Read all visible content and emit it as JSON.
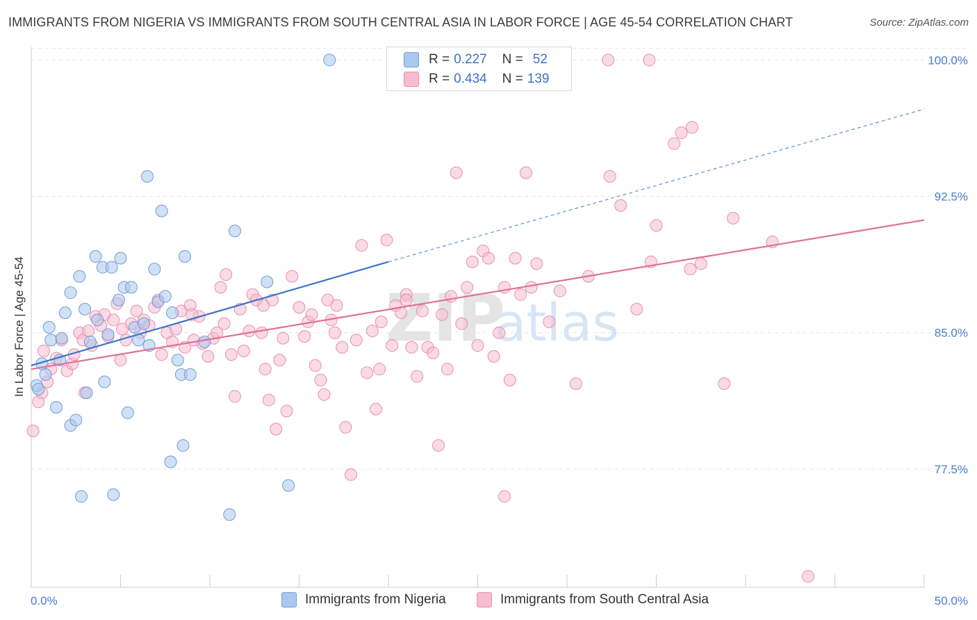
{
  "title": "IMMIGRANTS FROM NIGERIA VS IMMIGRANTS FROM SOUTH CENTRAL ASIA IN LABOR FORCE | AGE 45-54 CORRELATION CHART",
  "source": "Source: ZipAtlas.com",
  "watermark": "ZIPatlas",
  "colors": {
    "blue_fill": "#aac8ee",
    "blue_stroke": "#6f9bd8",
    "blue_line": "#3a75c9",
    "pink_fill": "#f6bcd0",
    "pink_stroke": "#e88fae",
    "pink_line": "#e07096",
    "tick_label": "#4a7cc9",
    "grid": "#e4e4e4"
  },
  "legend": {
    "rows": [
      {
        "r_label": "R =",
        "r_value": "0.227",
        "n_label": "N =",
        "n_value": "52"
      },
      {
        "r_label": "R =",
        "r_value": "0.434",
        "n_label": "N =",
        "n_value": "139"
      }
    ]
  },
  "chart_data": {
    "type": "scatter",
    "title": "IMMIGRANTS FROM NIGERIA VS IMMIGRANTS FROM SOUTH CENTRAL ASIA IN LABOR FORCE | AGE 45-54 CORRELATION CHART",
    "xlabel": "",
    "ylabel": "In Labor Force | Age 45-54",
    "xlim": [
      0,
      50
    ],
    "ylim": [
      71,
      100.7
    ],
    "x_tick_labels": [
      "0.0%",
      "50.0%"
    ],
    "y_ticks": [
      77.5,
      85.0,
      92.5,
      100.0
    ],
    "y_tick_labels": [
      "77.5%",
      "85.0%",
      "92.5%",
      "100.0%"
    ],
    "grid": true,
    "legend_placement": "top-center",
    "series": [
      {
        "name": "Immigrants from Nigeria",
        "color": "#aac8ee",
        "trend": {
          "x0": 0,
          "y0": 83.2,
          "x1": 20,
          "y1": 88.9,
          "extend_to_x": 50,
          "extend_to_y": 97.3
        },
        "points": [
          [
            0.3,
            82.1
          ],
          [
            0.4,
            81.9
          ],
          [
            0.6,
            83.3
          ],
          [
            0.8,
            82.7
          ],
          [
            1.0,
            85.3
          ],
          [
            1.1,
            84.6
          ],
          [
            1.4,
            80.9
          ],
          [
            1.6,
            83.5
          ],
          [
            1.7,
            84.7
          ],
          [
            1.9,
            86.1
          ],
          [
            2.2,
            87.2
          ],
          [
            2.2,
            79.9
          ],
          [
            2.5,
            80.2
          ],
          [
            2.7,
            88.1
          ],
          [
            2.8,
            76.0
          ],
          [
            3.0,
            86.3
          ],
          [
            3.1,
            81.7
          ],
          [
            3.3,
            84.5
          ],
          [
            3.6,
            89.2
          ],
          [
            3.7,
            85.7
          ],
          [
            4.0,
            88.6
          ],
          [
            4.1,
            82.3
          ],
          [
            4.3,
            84.9
          ],
          [
            4.5,
            88.6
          ],
          [
            4.6,
            76.1
          ],
          [
            4.9,
            86.8
          ],
          [
            5.0,
            89.1
          ],
          [
            5.2,
            87.5
          ],
          [
            5.4,
            80.6
          ],
          [
            5.6,
            87.5
          ],
          [
            5.8,
            85.3
          ],
          [
            6.0,
            84.6
          ],
          [
            6.3,
            85.5
          ],
          [
            6.5,
            93.6
          ],
          [
            6.6,
            84.3
          ],
          [
            6.9,
            88.5
          ],
          [
            7.1,
            86.7
          ],
          [
            7.3,
            91.7
          ],
          [
            7.5,
            87.0
          ],
          [
            7.8,
            77.9
          ],
          [
            7.9,
            86.1
          ],
          [
            8.2,
            83.5
          ],
          [
            8.4,
            82.7
          ],
          [
            8.5,
            78.8
          ],
          [
            8.6,
            89.2
          ],
          [
            8.9,
            82.7
          ],
          [
            9.7,
            84.5
          ],
          [
            11.1,
            75.0
          ],
          [
            11.4,
            90.6
          ],
          [
            13.2,
            87.8
          ],
          [
            14.4,
            76.6
          ],
          [
            16.7,
            100.0
          ]
        ]
      },
      {
        "name": "Immigrants from South Central Asia",
        "color": "#f6bcd0",
        "trend": {
          "x0": 0,
          "y0": 83.0,
          "x1": 50,
          "y1": 91.2
        },
        "points": [
          [
            0.1,
            79.6
          ],
          [
            0.4,
            81.2
          ],
          [
            0.6,
            81.7
          ],
          [
            0.7,
            84.0
          ],
          [
            0.9,
            82.3
          ],
          [
            1.1,
            83.0
          ],
          [
            1.4,
            83.6
          ],
          [
            1.7,
            84.6
          ],
          [
            2.0,
            82.9
          ],
          [
            2.3,
            83.3
          ],
          [
            2.4,
            83.8
          ],
          [
            2.7,
            85.0
          ],
          [
            2.9,
            84.6
          ],
          [
            3.0,
            81.7
          ],
          [
            3.2,
            85.1
          ],
          [
            3.4,
            84.3
          ],
          [
            3.6,
            85.9
          ],
          [
            3.9,
            85.4
          ],
          [
            4.1,
            86.0
          ],
          [
            4.3,
            84.8
          ],
          [
            4.6,
            85.7
          ],
          [
            4.8,
            86.6
          ],
          [
            5.1,
            85.2
          ],
          [
            5.3,
            84.6
          ],
          [
            5.6,
            85.5
          ],
          [
            5.9,
            86.2
          ],
          [
            6.1,
            85.0
          ],
          [
            6.3,
            85.7
          ],
          [
            6.6,
            85.4
          ],
          [
            6.9,
            86.4
          ],
          [
            7.1,
            86.8
          ],
          [
            7.3,
            83.8
          ],
          [
            7.6,
            85.0
          ],
          [
            7.9,
            84.5
          ],
          [
            8.1,
            85.2
          ],
          [
            8.4,
            86.2
          ],
          [
            8.6,
            84.2
          ],
          [
            8.9,
            86.5
          ],
          [
            9.1,
            84.6
          ],
          [
            9.4,
            85.9
          ],
          [
            9.6,
            84.4
          ],
          [
            9.9,
            83.7
          ],
          [
            10.2,
            84.7
          ],
          [
            10.4,
            85.0
          ],
          [
            10.6,
            87.5
          ],
          [
            10.9,
            88.2
          ],
          [
            11.2,
            83.8
          ],
          [
            11.4,
            81.5
          ],
          [
            11.7,
            86.3
          ],
          [
            11.9,
            84.0
          ],
          [
            12.2,
            85.1
          ],
          [
            12.4,
            87.1
          ],
          [
            12.6,
            86.8
          ],
          [
            12.9,
            85.0
          ],
          [
            13.1,
            83.0
          ],
          [
            13.3,
            81.3
          ],
          [
            13.5,
            86.8
          ],
          [
            13.7,
            79.7
          ],
          [
            13.9,
            83.5
          ],
          [
            14.1,
            84.7
          ],
          [
            14.3,
            80.7
          ],
          [
            14.6,
            88.1
          ],
          [
            15.0,
            86.4
          ],
          [
            15.3,
            84.8
          ],
          [
            15.5,
            85.6
          ],
          [
            15.7,
            86.0
          ],
          [
            15.9,
            83.2
          ],
          [
            16.2,
            82.4
          ],
          [
            16.4,
            81.6
          ],
          [
            16.6,
            86.8
          ],
          [
            16.8,
            85.7
          ],
          [
            17.1,
            86.5
          ],
          [
            17.4,
            84.2
          ],
          [
            17.6,
            79.8
          ],
          [
            17.9,
            77.2
          ],
          [
            18.2,
            84.6
          ],
          [
            18.5,
            89.8
          ],
          [
            18.8,
            82.8
          ],
          [
            19.1,
            85.1
          ],
          [
            19.3,
            80.8
          ],
          [
            19.6,
            85.6
          ],
          [
            19.9,
            90.1
          ],
          [
            20.2,
            84.3
          ],
          [
            20.4,
            86.5
          ],
          [
            20.7,
            86.1
          ],
          [
            21.0,
            87.1
          ],
          [
            21.3,
            84.2
          ],
          [
            21.6,
            82.6
          ],
          [
            21.9,
            86.2
          ],
          [
            22.2,
            84.2
          ],
          [
            22.5,
            83.9
          ],
          [
            22.8,
            78.8
          ],
          [
            23.0,
            86.0
          ],
          [
            23.3,
            83.0
          ],
          [
            23.5,
            87.0
          ],
          [
            23.8,
            93.8
          ],
          [
            24.1,
            85.5
          ],
          [
            24.4,
            87.5
          ],
          [
            24.7,
            88.9
          ],
          [
            25.0,
            84.3
          ],
          [
            25.3,
            89.5
          ],
          [
            25.6,
            89.1
          ],
          [
            25.9,
            83.7
          ],
          [
            26.2,
            85.0
          ],
          [
            26.5,
            87.5
          ],
          [
            26.8,
            82.4
          ],
          [
            27.1,
            89.1
          ],
          [
            27.4,
            87.1
          ],
          [
            27.7,
            93.8
          ],
          [
            28.0,
            87.5
          ],
          [
            28.3,
            88.8
          ],
          [
            29.0,
            85.6
          ],
          [
            29.6,
            87.3
          ],
          [
            30.5,
            82.2
          ],
          [
            31.2,
            88.1
          ],
          [
            32.4,
            93.6
          ],
          [
            33.0,
            92.0
          ],
          [
            33.9,
            86.3
          ],
          [
            34.7,
            88.9
          ],
          [
            35.0,
            90.9
          ],
          [
            36.0,
            95.4
          ],
          [
            36.4,
            96.0
          ],
          [
            37.0,
            96.3
          ],
          [
            37.5,
            88.8
          ],
          [
            38.8,
            82.2
          ],
          [
            39.3,
            91.3
          ],
          [
            41.5,
            90.0
          ],
          [
            43.5,
            71.6
          ],
          [
            26.5,
            76.0
          ],
          [
            23.0,
            99.8
          ],
          [
            32.3,
            100.0
          ],
          [
            34.6,
            100.0
          ],
          [
            36.9,
            88.5
          ],
          [
            5.0,
            83.5
          ],
          [
            9.0,
            86.0
          ],
          [
            13.0,
            86.5
          ],
          [
            17.0,
            85.0
          ],
          [
            21.0,
            86.8
          ],
          [
            19.5,
            83.0
          ],
          [
            10.8,
            85.5
          ]
        ]
      }
    ]
  },
  "bottom_legend": {
    "items": [
      {
        "label": "Immigrants from Nigeria"
      },
      {
        "label": "Immigrants from South Central Asia"
      }
    ]
  }
}
